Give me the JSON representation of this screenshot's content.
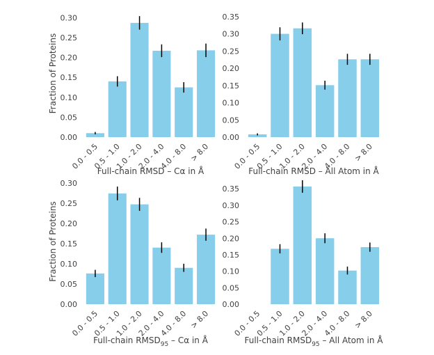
{
  "chart_data": [
    {
      "type": "bar",
      "categories": [
        "0.0 - 0.5",
        "0.5 - 1.0",
        "1.0 - 2.0",
        "2.0 - 4.0",
        "4.0 - 8.0",
        "> 8.0"
      ],
      "values": [
        0.01,
        0.14,
        0.287,
        0.217,
        0.125,
        0.218
      ],
      "errors": [
        0.003,
        0.013,
        0.017,
        0.016,
        0.013,
        0.017
      ],
      "ylim": [
        0,
        0.32
      ],
      "yticks": [
        "0.00",
        "0.05",
        "0.10",
        "0.15",
        "0.20",
        "0.25",
        "0.30"
      ],
      "ylabel": "Fraction of Proteins",
      "xlabel": "Full-chain RMSD – Cα in Å"
    },
    {
      "type": "bar",
      "categories": [
        "0.0 - 0.5",
        "0.5 - 1.0",
        "1.0 - 2.0",
        "2.0 - 4.0",
        "4.0 - 8.0",
        "> 8.0"
      ],
      "values": [
        0.008,
        0.3,
        0.316,
        0.151,
        0.226,
        0.226
      ],
      "errors": [
        0.003,
        0.019,
        0.017,
        0.013,
        0.016,
        0.016
      ],
      "ylim": [
        0,
        0.37
      ],
      "yticks": [
        "0.00",
        "0.05",
        "0.10",
        "0.15",
        "0.20",
        "0.25",
        "0.30",
        "0.35"
      ],
      "ylabel": "",
      "xlabel": "Full-chain RMSD – All Atom in Å"
    },
    {
      "type": "bar",
      "categories": [
        "0.0 - 0.5",
        "0.5 - 1.0",
        "1.0 - 2.0",
        "2.0 - 4.0",
        "4.0 - 8.0",
        "> 8.0"
      ],
      "values": [
        0.076,
        0.274,
        0.247,
        0.14,
        0.09,
        0.172
      ],
      "errors": [
        0.009,
        0.017,
        0.016,
        0.013,
        0.01,
        0.015
      ],
      "ylim": [
        0,
        0.31
      ],
      "yticks": [
        "0.00",
        "0.05",
        "0.10",
        "0.15",
        "0.20",
        "0.25",
        "0.30"
      ],
      "ylabel": "Fraction of Proteins",
      "xlabel": "Full-chain RMSD95 – Cα in Å"
    },
    {
      "type": "bar",
      "categories": [
        "0.0 - 0.5",
        "0.5 - 1.0",
        "1.0 - 2.0",
        "2.0 - 4.0",
        "4.0 - 8.0",
        "> 8.0"
      ],
      "values": [
        0.0,
        0.168,
        0.357,
        0.2,
        0.102,
        0.173
      ],
      "errors": [
        0.0,
        0.014,
        0.019,
        0.015,
        0.012,
        0.014
      ],
      "ylim": [
        0,
        0.38
      ],
      "yticks": [
        "0.00",
        "0.05",
        "0.10",
        "0.15",
        "0.20",
        "0.25",
        "0.30",
        "0.35"
      ],
      "ylabel": "",
      "xlabel": "Full-chain RMSD95 – All Atom in Å"
    }
  ],
  "colors": {
    "bar": "#87ceeb",
    "error_bar": "#000000",
    "text": "#404040"
  }
}
